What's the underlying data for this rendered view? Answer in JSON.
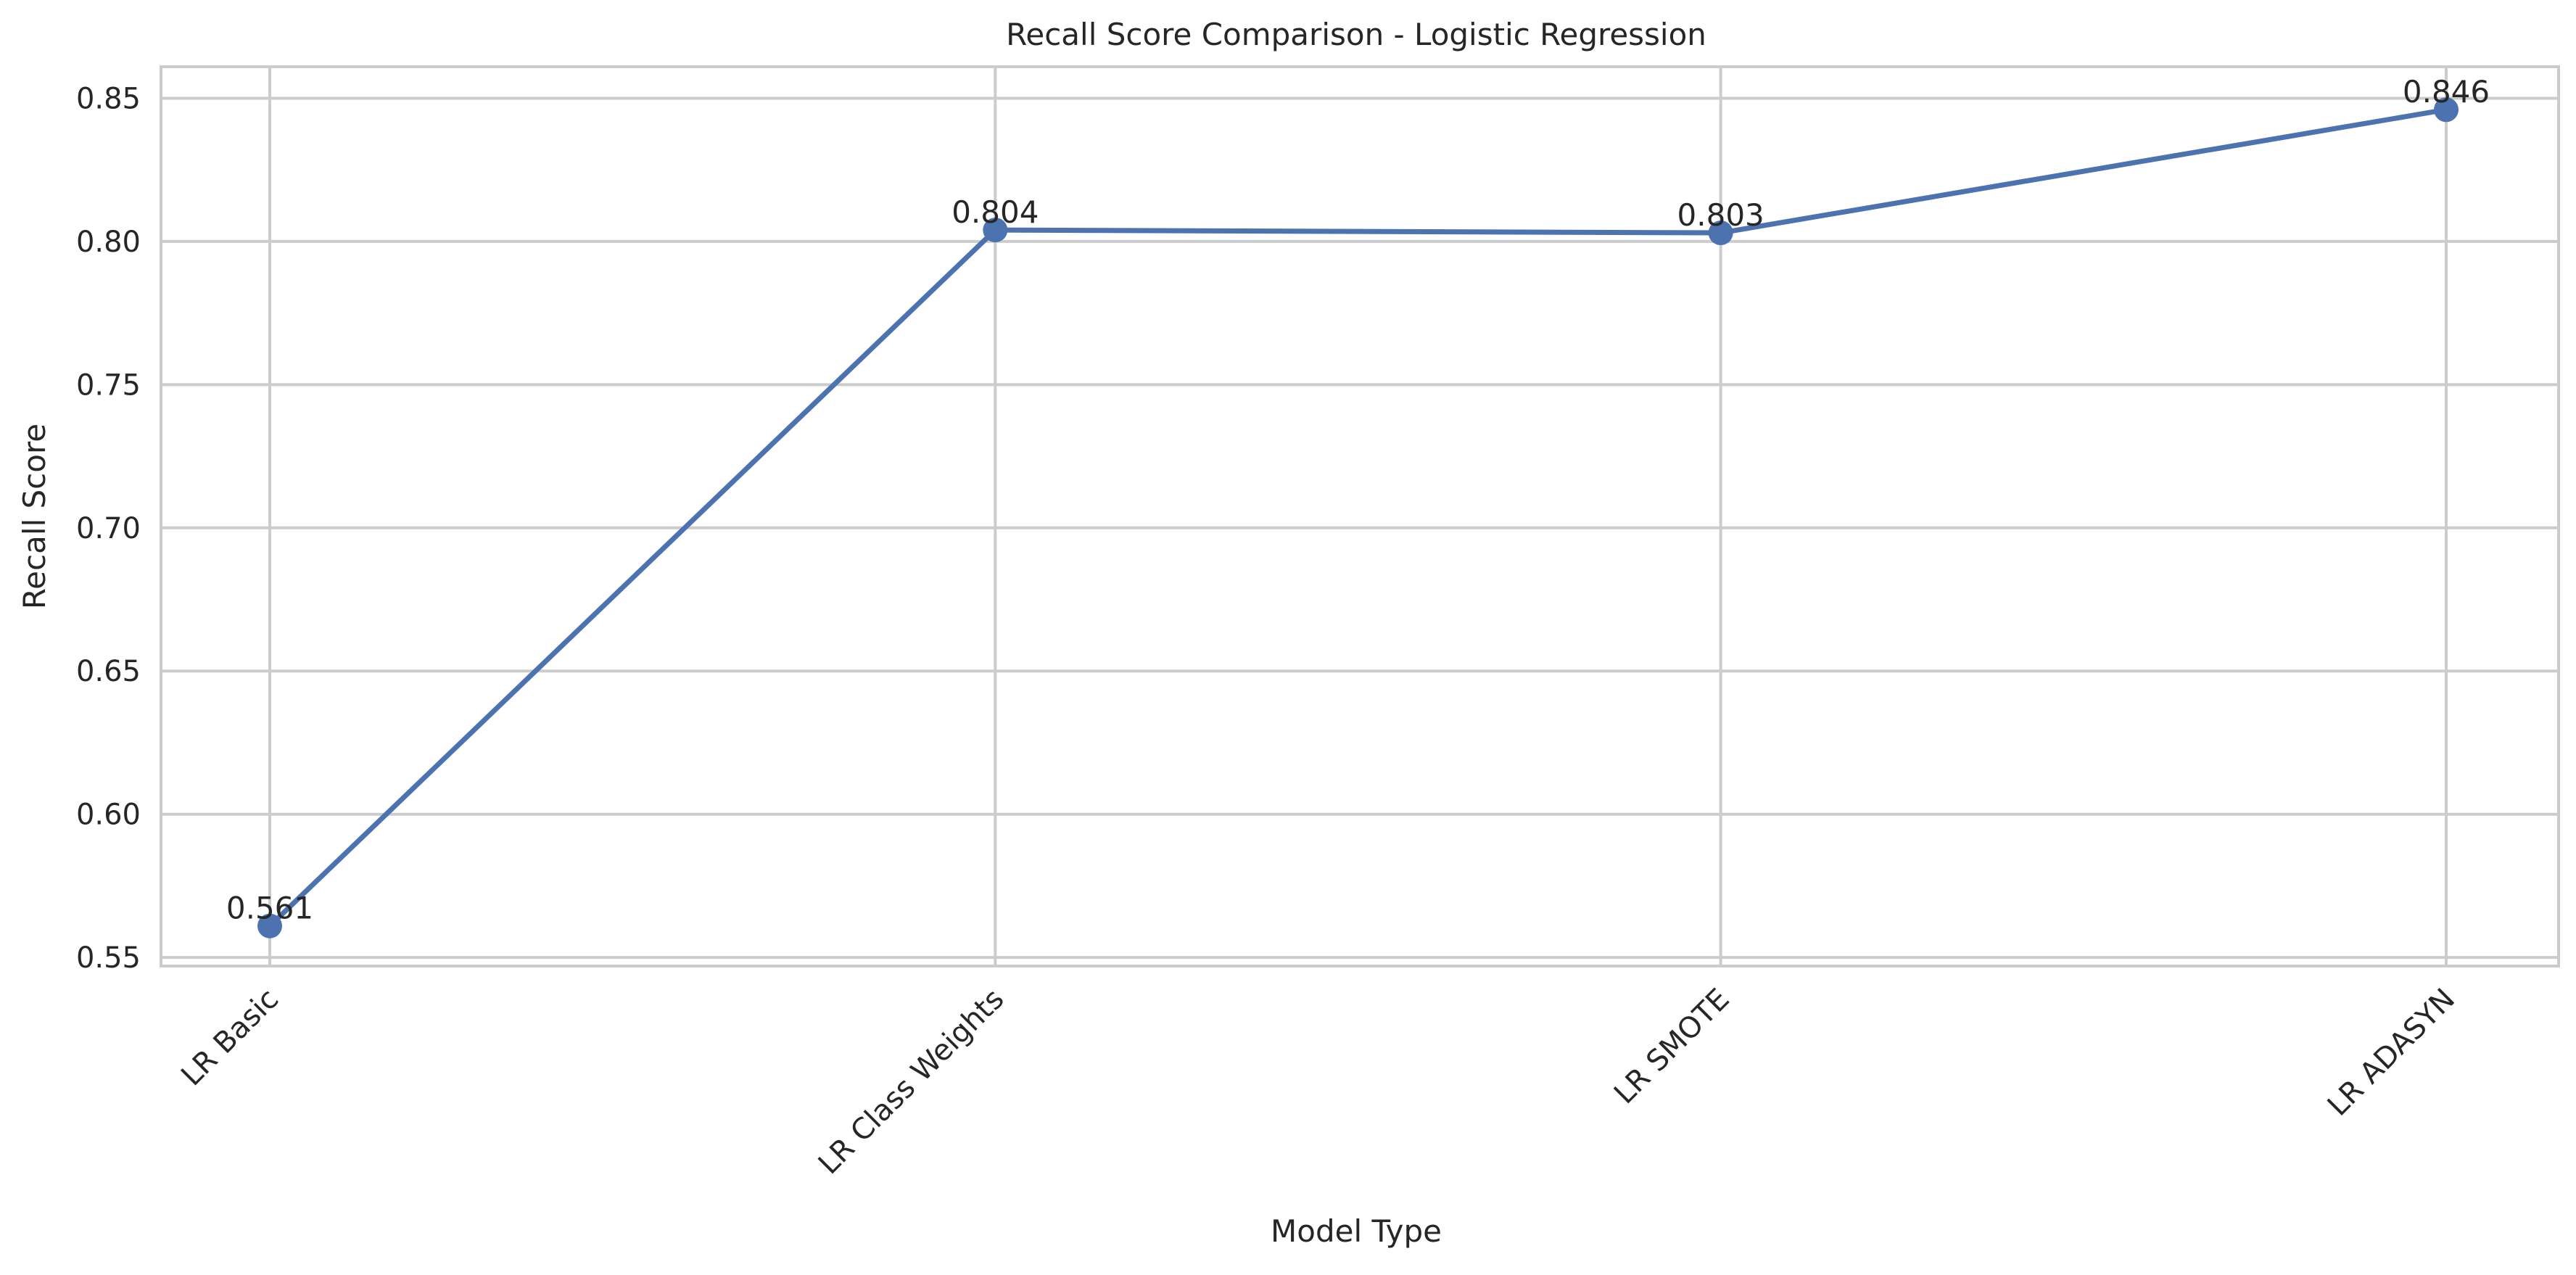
{
  "chart_data": {
    "type": "line",
    "title": "Recall Score Comparison - Logistic Regression",
    "xlabel": "Model Type",
    "ylabel": "Recall Score",
    "categories": [
      "LR Basic",
      "LR Class Weights",
      "LR SMOTE",
      "LR ADASYN"
    ],
    "series": [
      {
        "values": [
          0.561,
          0.804,
          0.803,
          0.846
        ],
        "data_labels": [
          "0.561",
          "0.804",
          "0.803",
          "0.846"
        ]
      }
    ],
    "ylim": [
      0.547,
      0.861
    ],
    "yticks": [
      0.55,
      0.6,
      0.65,
      0.7,
      0.75,
      0.8,
      0.85
    ],
    "ytick_labels": [
      "0.55",
      "0.60",
      "0.65",
      "0.70",
      "0.75",
      "0.80",
      "0.85"
    ],
    "xtick_rotation_deg": 45,
    "grid": true,
    "style": "seaborn-whitegrid",
    "colors": {
      "line": "#4c72b0",
      "grid": "#cccccc",
      "spine": "#cccccc",
      "text": "#262626",
      "background": "#ffffff"
    }
  }
}
